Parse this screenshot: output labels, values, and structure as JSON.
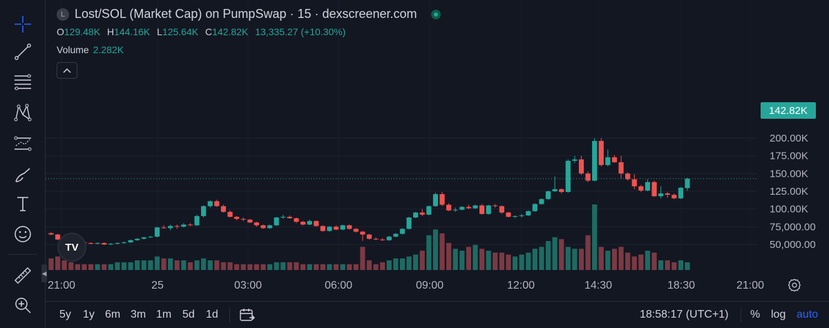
{
  "legend": {
    "symbol_badge": "L",
    "title": "Lost/SOL (Market Cap) on PumpSwap · 15 · dexscreener.com"
  },
  "ohlc": [
    {
      "key": "O",
      "value": "129.48K"
    },
    {
      "key": "H",
      "value": "144.16K"
    },
    {
      "key": "L",
      "value": "125.64K"
    },
    {
      "key": "C",
      "value": "142.82K"
    }
  ],
  "change": "13,335.27 (+10.30%)",
  "volume": {
    "label": "Volume",
    "value": "2.282K"
  },
  "price_tag": "142.82K",
  "logo_text": "TV",
  "bottom": {
    "ranges": [
      "5y",
      "1y",
      "6m",
      "3m",
      "1m",
      "5d",
      "1d"
    ],
    "clock": "18:58:17 (UTC+1)",
    "percent": "%",
    "log": "log",
    "auto": "auto"
  },
  "colors": {
    "up": "#26a69a",
    "down": "#ef5350",
    "vol_up": "#1e6b63",
    "vol_down": "#7a3a44",
    "background": "#131722"
  },
  "toolbar_icons": [
    "crosshair-icon",
    "trend-line-icon",
    "fib-retracement-icon",
    "xabcd-pattern-icon",
    "forecast-icon",
    "brush-icon",
    "text-icon",
    "emoji-icon",
    "ruler-icon",
    "zoom-in-icon"
  ],
  "chart_data": {
    "type": "candlestick",
    "y_tick_labels": [
      "200.00K",
      "175.00K",
      "150.00K",
      "125.00K",
      "100.00K",
      "75,000.00",
      "50,000.00"
    ],
    "y_ticks": [
      200000,
      175000,
      150000,
      125000,
      100000,
      75000,
      50000
    ],
    "x_tick_labels": [
      "21:00",
      "25",
      "03:00",
      "06:00",
      "09:00",
      "12:00",
      "14:30",
      "18:30",
      "21:00"
    ],
    "last_price": 142820,
    "candles": [
      [
        66000,
        67000,
        63000,
        64000
      ],
      [
        64000,
        65000,
        56000,
        57000
      ],
      [
        57000,
        59000,
        54000,
        56000
      ],
      [
        56000,
        57000,
        52000,
        54000
      ],
      [
        54000,
        55000,
        51000,
        53000
      ],
      [
        53000,
        54000,
        50000,
        52000
      ],
      [
        52000,
        53000,
        50000,
        51000
      ],
      [
        51000,
        53000,
        50000,
        52000
      ],
      [
        52000,
        53000,
        49000,
        50000
      ],
      [
        50000,
        52000,
        49000,
        51000
      ],
      [
        51000,
        53000,
        50000,
        52000
      ],
      [
        52000,
        54000,
        51000,
        53000
      ],
      [
        53000,
        57000,
        52000,
        56000
      ],
      [
        56000,
        59000,
        55000,
        58000
      ],
      [
        58000,
        61000,
        57000,
        60000
      ],
      [
        60000,
        62000,
        59000,
        61000
      ],
      [
        61000,
        75000,
        60000,
        74000
      ],
      [
        74000,
        77000,
        72000,
        73000
      ],
      [
        73000,
        78000,
        70000,
        76000
      ],
      [
        76000,
        78000,
        72000,
        75000
      ],
      [
        75000,
        80000,
        74000,
        78000
      ],
      [
        78000,
        80000,
        76000,
        77000
      ],
      [
        77000,
        92000,
        76000,
        90000
      ],
      [
        90000,
        105000,
        88000,
        104000
      ],
      [
        104000,
        112000,
        102000,
        111000
      ],
      [
        111000,
        113000,
        103000,
        104000
      ],
      [
        104000,
        106000,
        95000,
        96000
      ],
      [
        96000,
        98000,
        88000,
        89000
      ],
      [
        89000,
        90000,
        84000,
        86000
      ],
      [
        86000,
        88000,
        83000,
        85000
      ],
      [
        85000,
        86000,
        80000,
        81000
      ],
      [
        81000,
        82000,
        75000,
        77000
      ],
      [
        77000,
        78000,
        72000,
        73000
      ],
      [
        73000,
        78000,
        72000,
        77000
      ],
      [
        77000,
        89000,
        76000,
        88000
      ],
      [
        88000,
        92000,
        86000,
        89000
      ],
      [
        89000,
        91000,
        86000,
        87000
      ],
      [
        87000,
        88000,
        80000,
        82000
      ],
      [
        82000,
        83000,
        77000,
        78000
      ],
      [
        78000,
        85000,
        77000,
        83000
      ],
      [
        83000,
        84000,
        75000,
        76000
      ],
      [
        76000,
        77000,
        68000,
        69000
      ],
      [
        69000,
        76000,
        68000,
        75000
      ],
      [
        75000,
        77000,
        70000,
        71000
      ],
      [
        71000,
        78000,
        70000,
        77000
      ],
      [
        77000,
        78000,
        71000,
        72000
      ],
      [
        72000,
        73000,
        67000,
        68000
      ],
      [
        68000,
        69000,
        55000,
        64000
      ],
      [
        64000,
        65000,
        57000,
        58000
      ],
      [
        58000,
        60000,
        56000,
        57000
      ],
      [
        57000,
        59000,
        55000,
        56000
      ],
      [
        56000,
        62000,
        55000,
        61000
      ],
      [
        61000,
        66000,
        60000,
        65000
      ],
      [
        65000,
        73000,
        64000,
        72000
      ],
      [
        72000,
        89000,
        71000,
        88000
      ],
      [
        88000,
        96000,
        87000,
        95000
      ],
      [
        95000,
        100000,
        90000,
        92000
      ],
      [
        92000,
        105000,
        91000,
        104000
      ],
      [
        104000,
        123000,
        103000,
        121000
      ],
      [
        121000,
        124000,
        104000,
        106000
      ],
      [
        106000,
        108000,
        97000,
        98000
      ],
      [
        98000,
        102000,
        96000,
        99000
      ],
      [
        99000,
        104000,
        98000,
        103000
      ],
      [
        103000,
        106000,
        100000,
        101000
      ],
      [
        101000,
        106000,
        100000,
        105000
      ],
      [
        105000,
        107000,
        92000,
        93000
      ],
      [
        93000,
        106000,
        92000,
        105000
      ],
      [
        105000,
        107000,
        102000,
        104000
      ],
      [
        104000,
        105000,
        93000,
        95000
      ],
      [
        95000,
        96000,
        88000,
        89000
      ],
      [
        89000,
        91000,
        87000,
        90000
      ],
      [
        90000,
        93000,
        88000,
        91000
      ],
      [
        91000,
        98000,
        90000,
        97000
      ],
      [
        97000,
        108000,
        96000,
        107000
      ],
      [
        107000,
        115000,
        106000,
        114000
      ],
      [
        114000,
        126000,
        113000,
        125000
      ],
      [
        125000,
        146000,
        124000,
        128000
      ],
      [
        128000,
        129000,
        122000,
        124000
      ],
      [
        124000,
        170000,
        123000,
        168000
      ],
      [
        168000,
        175000,
        165000,
        170000
      ],
      [
        170000,
        175000,
        148000,
        150000
      ],
      [
        150000,
        153000,
        138000,
        140000
      ],
      [
        140000,
        200000,
        139000,
        196000
      ],
      [
        196000,
        200000,
        160000,
        162000
      ],
      [
        162000,
        184000,
        160000,
        173000
      ],
      [
        173000,
        176000,
        165000,
        166000
      ],
      [
        166000,
        175000,
        143000,
        150000
      ],
      [
        150000,
        152000,
        140000,
        142000
      ],
      [
        142000,
        149000,
        128000,
        132000
      ],
      [
        132000,
        134000,
        124000,
        126000
      ],
      [
        126000,
        142000,
        125000,
        138000
      ],
      [
        138000,
        140000,
        117000,
        118000
      ],
      [
        118000,
        132000,
        115000,
        122000
      ],
      [
        122000,
        124000,
        116000,
        120000
      ],
      [
        120000,
        122000,
        114000,
        115000
      ],
      [
        115000,
        131000,
        114000,
        130000
      ],
      [
        129480,
        144160,
        125640,
        142820
      ]
    ],
    "volumes": [
      3.0,
      3.5,
      2.5,
      2.0,
      1.5,
      1.5,
      1.5,
      1.5,
      1.5,
      1.5,
      2.0,
      2.0,
      2.0,
      2.5,
      2.5,
      2.5,
      3.5,
      3.0,
      3.0,
      2.5,
      2.5,
      2.0,
      2.5,
      3.0,
      2.5,
      2.5,
      2.0,
      2.0,
      1.5,
      1.5,
      1.5,
      1.5,
      1.5,
      1.5,
      2.0,
      2.0,
      2.0,
      2.0,
      1.5,
      1.5,
      1.5,
      1.5,
      1.5,
      1.5,
      1.5,
      1.5,
      1.5,
      6.0,
      2.5,
      1.5,
      2.0,
      2.5,
      3.0,
      3.0,
      3.5,
      4.0,
      5.0,
      9.0,
      10.5,
      9.5,
      7.0,
      5.5,
      5.0,
      6.0,
      6.5,
      5.5,
      5.0,
      4.5,
      4.5,
      4.0,
      3.5,
      4.0,
      4.5,
      5.5,
      6.0,
      7.5,
      8.5,
      8.0,
      6.0,
      5.5,
      5.5,
      9.0,
      17.0,
      6.0,
      5.0,
      5.5,
      6.0,
      4.5,
      3.5,
      4.0,
      5.0,
      4.5,
      2.5,
      2.5,
      2.0,
      2.5,
      2.0
    ]
  }
}
